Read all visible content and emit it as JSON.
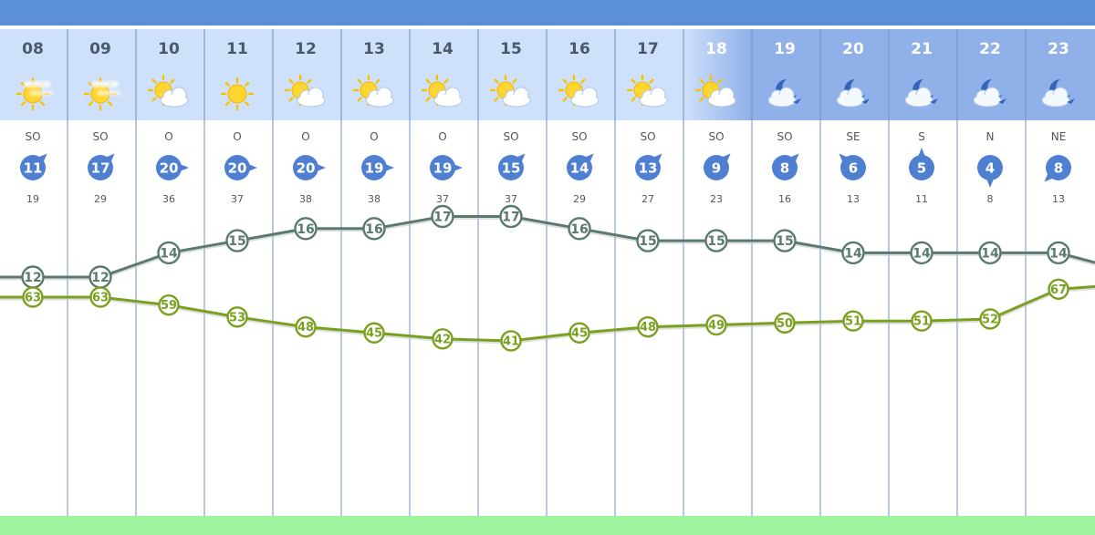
{
  "colors": {
    "topbar": "#5b8fd8",
    "header_day": "#cfe0fb",
    "header_night": "#8fb0e8",
    "column_divider": "#6f92c5",
    "wind_circle": "#4f7fd0",
    "temperature_line": "#5a7a70",
    "humidity_line": "#7aa020",
    "bottom_bar": "#9ff59f"
  },
  "chart_data": {
    "type": "line",
    "x": [
      "08",
      "09",
      "10",
      "11",
      "12",
      "13",
      "14",
      "15",
      "16",
      "17",
      "18",
      "19",
      "20",
      "21",
      "22",
      "23"
    ],
    "period": [
      "day",
      "day",
      "day",
      "day",
      "day",
      "day",
      "day",
      "day",
      "day",
      "day",
      "day",
      "night",
      "night",
      "night",
      "night",
      "night"
    ],
    "icons": [
      "hazy-sun-icon",
      "hazy-sun-icon",
      "sun-cloud-icon",
      "sun-icon",
      "sun-cloud-icon",
      "sun-cloud-icon",
      "sun-cloud-icon",
      "sun-cloud-icon",
      "sun-cloud-icon",
      "sun-cloud-icon",
      "sun-cloud-icon",
      "moon-cloud-icon",
      "moon-cloud-icon",
      "moon-cloud-icon",
      "moon-cloud-icon",
      "moon-cloud-icon"
    ],
    "wind_direction": [
      "SO",
      "SO",
      "O",
      "O",
      "O",
      "O",
      "O",
      "SO",
      "SO",
      "SO",
      "SO",
      "SO",
      "SE",
      "S",
      "N",
      "NE"
    ],
    "wind_speed": [
      11,
      17,
      20,
      20,
      20,
      19,
      19,
      15,
      14,
      13,
      9,
      8,
      6,
      5,
      4,
      8
    ],
    "wind_gust": [
      19,
      29,
      36,
      37,
      38,
      38,
      37,
      37,
      29,
      27,
      23,
      16,
      13,
      11,
      8,
      13
    ],
    "series": [
      {
        "values": [
          12,
          12,
          14,
          15,
          16,
          16,
          17,
          17,
          16,
          15,
          15,
          15,
          14,
          14,
          14,
          14
        ],
        "end_value": 13.2
      },
      {
        "values": [
          63,
          63,
          59,
          53,
          48,
          45,
          42,
          41,
          45,
          48,
          49,
          50,
          51,
          51,
          52,
          67
        ],
        "end_value": 68.3
      }
    ]
  }
}
